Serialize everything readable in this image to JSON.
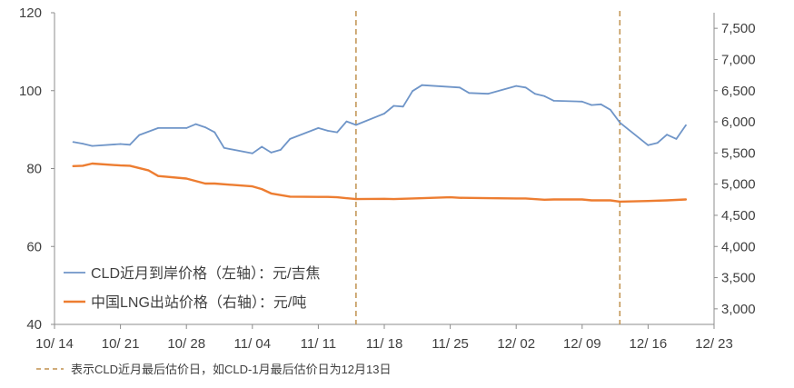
{
  "chart_data": {
    "type": "line",
    "left_axis": {
      "ylim": [
        40,
        120
      ],
      "ticks": [
        40,
        60,
        80,
        100,
        120
      ],
      "tick_labels": [
        "40",
        "60",
        "80",
        "100",
        "120"
      ]
    },
    "right_axis": {
      "ylim": [
        2750,
        7750
      ],
      "ticks": [
        3000,
        3500,
        4000,
        4500,
        5000,
        5500,
        6000,
        6500,
        7000,
        7500
      ],
      "tick_labels": [
        "3,000",
        "3,500",
        "4,000",
        "4,500",
        "5,000",
        "5,500",
        "6,000",
        "6,500",
        "7,000",
        "7,500"
      ]
    },
    "x_axis": {
      "range": [
        "10/14",
        "12/23"
      ],
      "tick_dates": [
        "10/14",
        "10/21",
        "10/28",
        "11/04",
        "11/11",
        "11/18",
        "11/25",
        "12/02",
        "12/09",
        "12/16",
        "12/23"
      ],
      "tick_labels": [
        "10/ 14",
        "10/ 21",
        "10/ 28",
        "11/ 04",
        "11/ 11",
        "11/ 18",
        "11/ 25",
        "12/ 02",
        "12/ 09",
        "12/ 16",
        "12/ 23"
      ]
    },
    "grid": false,
    "legend_position": "bottom-left",
    "series": [
      {
        "name": "CLD近月到岸价格（左轴）：元/吉焦",
        "axis": "left",
        "color": "#6f95c8",
        "points": [
          [
            "10/16",
            86.8
          ],
          [
            "10/17",
            86.4
          ],
          [
            "10/18",
            85.8
          ],
          [
            "10/21",
            86.3
          ],
          [
            "10/22",
            86.1
          ],
          [
            "10/23",
            88.6
          ],
          [
            "10/25",
            90.4
          ],
          [
            "10/28",
            90.4
          ],
          [
            "10/29",
            91.4
          ],
          [
            "10/30",
            90.6
          ],
          [
            "10/31",
            89.3
          ],
          [
            "11/01",
            85.3
          ],
          [
            "11/04",
            83.9
          ],
          [
            "11/05",
            85.6
          ],
          [
            "11/06",
            84.1
          ],
          [
            "11/07",
            84.8
          ],
          [
            "11/08",
            87.6
          ],
          [
            "11/11",
            90.4
          ],
          [
            "11/12",
            89.7
          ],
          [
            "11/13",
            89.3
          ],
          [
            "11/14",
            92.1
          ],
          [
            "11/15",
            91.2
          ],
          [
            "11/18",
            94.1
          ],
          [
            "11/19",
            96.1
          ],
          [
            "11/20",
            95.9
          ],
          [
            "11/21",
            99.9
          ],
          [
            "11/22",
            101.4
          ],
          [
            "11/26",
            100.8
          ],
          [
            "11/27",
            99.4
          ],
          [
            "11/29",
            99.2
          ],
          [
            "12/02",
            101.2
          ],
          [
            "12/03",
            100.8
          ],
          [
            "12/04",
            99.2
          ],
          [
            "12/05",
            98.6
          ],
          [
            "12/06",
            97.4
          ],
          [
            "12/09",
            97.2
          ],
          [
            "12/10",
            96.3
          ],
          [
            "12/11",
            96.5
          ],
          [
            "12/12",
            95.1
          ],
          [
            "12/13",
            91.8
          ],
          [
            "12/16",
            86.0
          ],
          [
            "12/17",
            86.6
          ],
          [
            "12/18",
            88.7
          ],
          [
            "12/19",
            87.6
          ],
          [
            "12/20",
            91.1
          ]
        ]
      },
      {
        "name": "中国LNG出站价格（右轴）：元/吨",
        "axis": "right",
        "color": "#ed7d31",
        "points": [
          [
            "10/16",
            5290
          ],
          [
            "10/17",
            5295
          ],
          [
            "10/18",
            5330
          ],
          [
            "10/21",
            5300
          ],
          [
            "10/22",
            5295
          ],
          [
            "10/24",
            5220
          ],
          [
            "10/25",
            5130
          ],
          [
            "10/28",
            5090
          ],
          [
            "10/30",
            5010
          ],
          [
            "10/31",
            5010
          ],
          [
            "11/04",
            4965
          ],
          [
            "11/05",
            4920
          ],
          [
            "11/06",
            4850
          ],
          [
            "11/08",
            4800
          ],
          [
            "11/11",
            4795
          ],
          [
            "11/12",
            4795
          ],
          [
            "11/13",
            4790
          ],
          [
            "11/15",
            4760
          ],
          [
            "11/18",
            4765
          ],
          [
            "11/19",
            4760
          ],
          [
            "11/21",
            4770
          ],
          [
            "11/25",
            4790
          ],
          [
            "11/26",
            4780
          ],
          [
            "11/29",
            4775
          ],
          [
            "12/02",
            4770
          ],
          [
            "12/03",
            4770
          ],
          [
            "12/05",
            4750
          ],
          [
            "12/06",
            4755
          ],
          [
            "12/09",
            4755
          ],
          [
            "12/10",
            4740
          ],
          [
            "12/12",
            4740
          ],
          [
            "12/13",
            4720
          ],
          [
            "12/16",
            4730
          ],
          [
            "12/18",
            4740
          ],
          [
            "12/20",
            4755
          ]
        ]
      }
    ],
    "vertical_markers": {
      "dates": [
        "11/15",
        "12/13"
      ],
      "color": "#c0914e",
      "legend_label": "表示CLD近月最后估价日，如CLD-1月最后估价日为12月13日"
    }
  }
}
